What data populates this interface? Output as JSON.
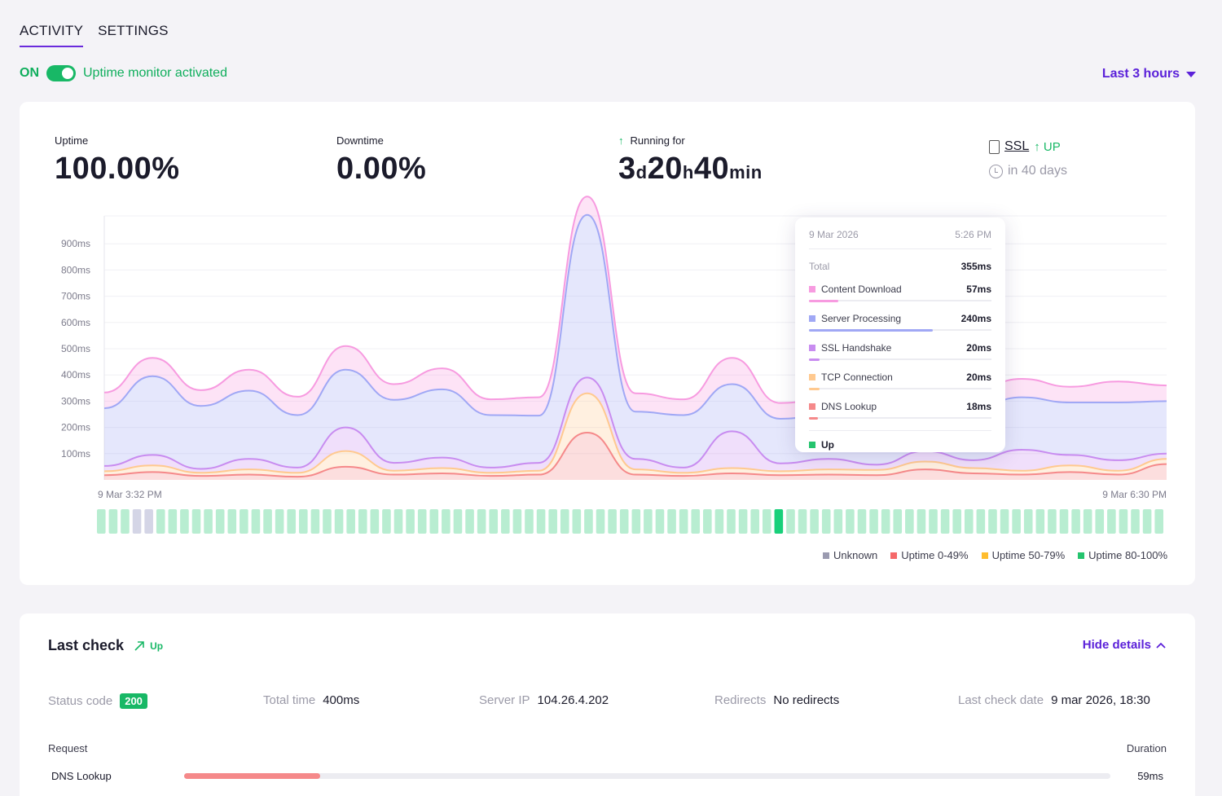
{
  "tabs": [
    {
      "label": "ACTIVITY"
    },
    {
      "label": "SETTINGS"
    }
  ],
  "monitor": {
    "state": "ON",
    "text": "Uptime monitor activated"
  },
  "range": {
    "label": "Last 3 hours"
  },
  "stats": {
    "uptime_label": "Uptime",
    "uptime_value": "100.00%",
    "downtime_label": "Downtime",
    "downtime_value": "0.00%",
    "running_label": "Running for",
    "running_parts": [
      "3",
      "d",
      "20",
      "h",
      "40",
      "min"
    ]
  },
  "ssl": {
    "label": "SSL",
    "status": "UP",
    "expires": "in 40 days"
  },
  "chart_data": {
    "type": "area",
    "y_ticks": [
      "900ms",
      "800ms",
      "700ms",
      "600ms",
      "500ms",
      "400ms",
      "300ms",
      "200ms",
      "100ms"
    ],
    "ylim": [
      0,
      1000
    ],
    "x_start_label": "9 Mar 3:32 PM",
    "x_end_label": "9 Mar 6:30 PM",
    "x": [
      "15:32",
      "15:40",
      "15:48",
      "15:56",
      "16:04",
      "16:12",
      "16:20",
      "16:28",
      "16:36",
      "16:44",
      "16:52",
      "17:00",
      "17:08",
      "17:16",
      "17:24",
      "17:32",
      "17:40",
      "17:48",
      "17:56",
      "18:04",
      "18:12",
      "18:20",
      "18:28"
    ],
    "series": [
      {
        "name": "DNS Lookup",
        "color": "#f5898a",
        "values": [
          18,
          30,
          15,
          20,
          12,
          50,
          20,
          25,
          15,
          20,
          180,
          20,
          15,
          25,
          18,
          20,
          18,
          40,
          25,
          20,
          30,
          20,
          60
        ]
      },
      {
        "name": "TCP Connection",
        "color": "#ffc98f",
        "values": [
          15,
          25,
          12,
          20,
          15,
          60,
          15,
          20,
          12,
          15,
          150,
          20,
          12,
          20,
          15,
          20,
          20,
          30,
          20,
          15,
          25,
          15,
          20
        ]
      },
      {
        "name": "SSL Handshake",
        "color": "#c88cf0",
        "values": [
          20,
          40,
          15,
          40,
          20,
          90,
          30,
          40,
          20,
          30,
          60,
          40,
          20,
          140,
          30,
          40,
          20,
          40,
          30,
          80,
          40,
          40,
          20
        ]
      },
      {
        "name": "Server Processing",
        "color": "#a0a8f5",
        "values": [
          220,
          300,
          240,
          260,
          200,
          220,
          240,
          260,
          200,
          180,
          620,
          180,
          200,
          180,
          170,
          170,
          240,
          180,
          200,
          200,
          200,
          220,
          200
        ]
      },
      {
        "name": "Content Download",
        "color": "#f79be0",
        "values": [
          60,
          70,
          60,
          80,
          70,
          90,
          60,
          80,
          60,
          70,
          70,
          70,
          60,
          100,
          60,
          60,
          80,
          60,
          70,
          70,
          60,
          80,
          60
        ]
      }
    ],
    "bars": {
      "count": 90,
      "unknown": [
        3,
        4
      ],
      "highlight": 57
    },
    "legend": [
      "Unknown",
      "Uptime 0-49%",
      "Uptime 50-79%",
      "Uptime 80-100%"
    ],
    "legend_colors": [
      "#9b9bb0",
      "#f5696a",
      "#ffbd2e",
      "#25c46e"
    ]
  },
  "tooltip": {
    "date": "9 Mar 2026",
    "time": "5:26 PM",
    "total_label": "Total",
    "total_value": "355ms",
    "rows": [
      {
        "label": "Content Download",
        "value": "57ms",
        "color": "#f79be0",
        "frac": 0.16
      },
      {
        "label": "Server Processing",
        "value": "240ms",
        "color": "#a0a8f5",
        "frac": 0.68
      },
      {
        "label": "SSL Handshake",
        "value": "20ms",
        "color": "#c88cf0",
        "frac": 0.06
      },
      {
        "label": "TCP Connection",
        "value": "20ms",
        "color": "#ffc98f",
        "frac": 0.06
      },
      {
        "label": "DNS Lookup",
        "value": "18ms",
        "color": "#f5898a",
        "frac": 0.05
      }
    ],
    "status": "Up",
    "status_color": "#25c46e"
  },
  "last_check": {
    "title": "Last check",
    "status": "Up",
    "toggle": "Hide details",
    "status_code_label": "Status code",
    "status_code": "200",
    "total_time_label": "Total time",
    "total_time": "400ms",
    "server_ip_label": "Server IP",
    "server_ip": "104.26.4.202",
    "redirects_label": "Redirects",
    "redirects": "No redirects",
    "date_label": "Last check date",
    "date": "9 mar 2026, 18:30",
    "request_header": "Request",
    "duration_header": "Duration",
    "requests": [
      {
        "label": "DNS Lookup",
        "value": "59ms",
        "frac": 0.147
      }
    ]
  }
}
